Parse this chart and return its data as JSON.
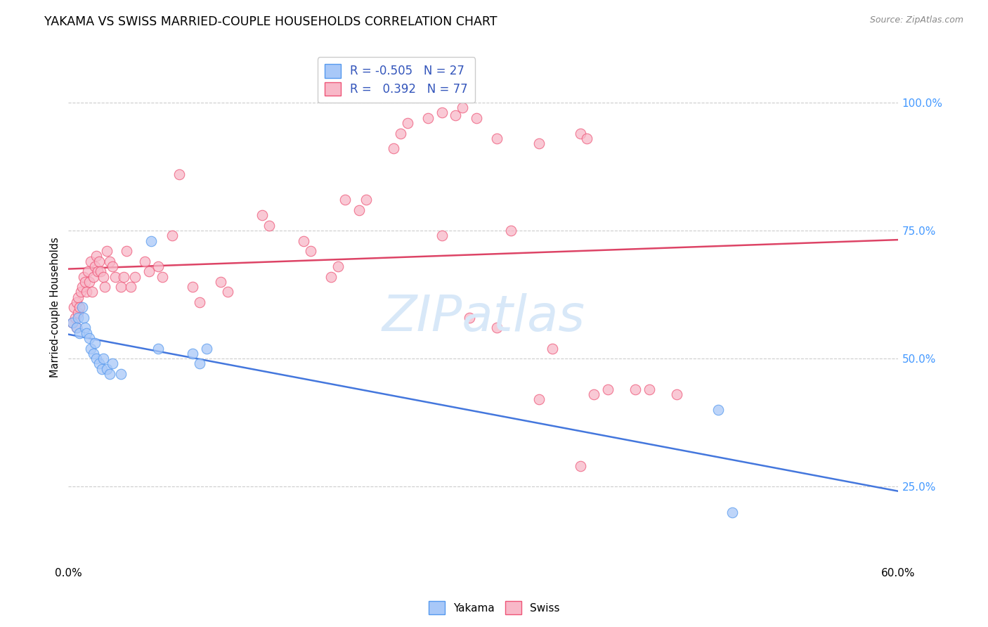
{
  "title": "YAKAMA VS SWISS MARRIED-COUPLE HOUSEHOLDS CORRELATION CHART",
  "source": "Source: ZipAtlas.com",
  "ylabel": "Married-couple Households",
  "y_ticks": [
    0.25,
    0.5,
    0.75,
    1.0
  ],
  "y_tick_labels": [
    "25.0%",
    "50.0%",
    "75.0%",
    "100.0%"
  ],
  "x_ticks": [
    0.0,
    0.1,
    0.2,
    0.3,
    0.4,
    0.5,
    0.6
  ],
  "x_tick_labels": [
    "0.0%",
    "",
    "",
    "",
    "",
    "",
    "60.0%"
  ],
  "legend_labels": [
    "Yakama",
    "Swiss"
  ],
  "legend_entries": [
    {
      "label": "R = -0.505   N = 27"
    },
    {
      "label": "R =   0.392   N = 77"
    }
  ],
  "yakama_face_color": "#a8c8f8",
  "yakama_edge_color": "#5599ee",
  "swiss_face_color": "#f8b8c8",
  "swiss_edge_color": "#ee5577",
  "yakama_line_color": "#4477dd",
  "swiss_line_color": "#dd4466",
  "background_color": "#ffffff",
  "grid_color": "#cccccc",
  "watermark_text": "ZIPatlas",
  "watermark_color": "#d8e8f8",
  "right_tick_color": "#4499ff",
  "xlim": [
    0.0,
    0.6
  ],
  "ylim": [
    0.1,
    1.1
  ],
  "yakama_points": [
    [
      0.003,
      0.57
    ],
    [
      0.006,
      0.56
    ],
    [
      0.007,
      0.58
    ],
    [
      0.008,
      0.55
    ],
    [
      0.01,
      0.6
    ],
    [
      0.011,
      0.58
    ],
    [
      0.012,
      0.56
    ],
    [
      0.013,
      0.55
    ],
    [
      0.015,
      0.54
    ],
    [
      0.016,
      0.52
    ],
    [
      0.018,
      0.51
    ],
    [
      0.019,
      0.53
    ],
    [
      0.02,
      0.5
    ],
    [
      0.022,
      0.49
    ],
    [
      0.024,
      0.48
    ],
    [
      0.025,
      0.5
    ],
    [
      0.028,
      0.48
    ],
    [
      0.03,
      0.47
    ],
    [
      0.032,
      0.49
    ],
    [
      0.038,
      0.47
    ],
    [
      0.06,
      0.73
    ],
    [
      0.065,
      0.52
    ],
    [
      0.09,
      0.51
    ],
    [
      0.095,
      0.49
    ],
    [
      0.1,
      0.52
    ],
    [
      0.47,
      0.4
    ],
    [
      0.48,
      0.2
    ]
  ],
  "swiss_points": [
    [
      0.003,
      0.57
    ],
    [
      0.004,
      0.6
    ],
    [
      0.005,
      0.58
    ],
    [
      0.006,
      0.61
    ],
    [
      0.006,
      0.56
    ],
    [
      0.007,
      0.59
    ],
    [
      0.007,
      0.62
    ],
    [
      0.008,
      0.6
    ],
    [
      0.009,
      0.63
    ],
    [
      0.01,
      0.64
    ],
    [
      0.011,
      0.66
    ],
    [
      0.012,
      0.65
    ],
    [
      0.013,
      0.63
    ],
    [
      0.014,
      0.67
    ],
    [
      0.015,
      0.65
    ],
    [
      0.016,
      0.69
    ],
    [
      0.017,
      0.63
    ],
    [
      0.018,
      0.66
    ],
    [
      0.019,
      0.68
    ],
    [
      0.02,
      0.7
    ],
    [
      0.021,
      0.67
    ],
    [
      0.022,
      0.69
    ],
    [
      0.023,
      0.67
    ],
    [
      0.025,
      0.66
    ],
    [
      0.026,
      0.64
    ],
    [
      0.028,
      0.71
    ],
    [
      0.03,
      0.69
    ],
    [
      0.032,
      0.68
    ],
    [
      0.034,
      0.66
    ],
    [
      0.038,
      0.64
    ],
    [
      0.04,
      0.66
    ],
    [
      0.042,
      0.71
    ],
    [
      0.045,
      0.64
    ],
    [
      0.048,
      0.66
    ],
    [
      0.055,
      0.69
    ],
    [
      0.058,
      0.67
    ],
    [
      0.065,
      0.68
    ],
    [
      0.068,
      0.66
    ],
    [
      0.075,
      0.74
    ],
    [
      0.09,
      0.64
    ],
    [
      0.095,
      0.61
    ],
    [
      0.11,
      0.65
    ],
    [
      0.115,
      0.63
    ],
    [
      0.14,
      0.78
    ],
    [
      0.145,
      0.76
    ],
    [
      0.17,
      0.73
    ],
    [
      0.175,
      0.71
    ],
    [
      0.19,
      0.66
    ],
    [
      0.195,
      0.68
    ],
    [
      0.21,
      0.79
    ],
    [
      0.215,
      0.81
    ],
    [
      0.24,
      0.94
    ],
    [
      0.245,
      0.96
    ],
    [
      0.26,
      0.97
    ],
    [
      0.27,
      0.98
    ],
    [
      0.28,
      0.975
    ],
    [
      0.285,
      0.99
    ],
    [
      0.295,
      0.97
    ],
    [
      0.31,
      0.93
    ],
    [
      0.34,
      0.92
    ],
    [
      0.37,
      0.94
    ],
    [
      0.375,
      0.93
    ],
    [
      0.235,
      0.91
    ],
    [
      0.2,
      0.81
    ],
    [
      0.08,
      0.86
    ],
    [
      0.27,
      0.74
    ],
    [
      0.32,
      0.75
    ],
    [
      0.29,
      0.58
    ],
    [
      0.31,
      0.56
    ],
    [
      0.34,
      0.42
    ],
    [
      0.37,
      0.29
    ],
    [
      0.39,
      0.44
    ],
    [
      0.41,
      0.44
    ],
    [
      0.42,
      0.44
    ],
    [
      0.44,
      0.43
    ],
    [
      0.35,
      0.52
    ],
    [
      0.38,
      0.43
    ]
  ]
}
